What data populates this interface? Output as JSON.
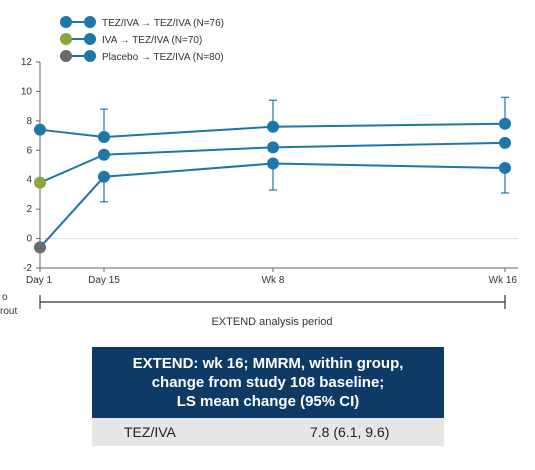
{
  "chart_data": {
    "type": "line",
    "categories": [
      "Day 1",
      "Day 15",
      "Wk 8",
      "Wk 16"
    ],
    "ylim": [
      -2,
      12
    ],
    "yticks": [
      -2,
      0,
      2,
      4,
      6,
      8,
      10,
      12
    ],
    "grid": false,
    "legend_position": "top-left",
    "series": [
      {
        "name": "TEZ/IVA → TEZ/IVA (N=76)",
        "color": "#1f77a8",
        "marker_left": "#1f77a8",
        "values": [
          7.4,
          6.9,
          7.6,
          7.8
        ],
        "error_high": [
          null,
          8.8,
          9.4,
          9.6
        ]
      },
      {
        "name": "IVA → TEZ/IVA (N=70)",
        "color": "#1f77a8",
        "marker_left": "#8aa63c",
        "values": [
          3.8,
          5.7,
          6.2,
          6.5
        ],
        "error_high": [
          null,
          null,
          null,
          null
        ]
      },
      {
        "name": "Placebo → TEZ/IVA (N=80)",
        "color": "#1f77a8",
        "marker_left": "#6b6b6b",
        "values": [
          -0.6,
          4.2,
          5.1,
          4.8
        ],
        "error_low": [
          null,
          2.5,
          3.3,
          3.1
        ]
      }
    ],
    "period_label": "EXTEND analysis period",
    "left_fragment": [
      "o",
      "rout"
    ]
  },
  "result_box": {
    "header_lines": [
      "EXTEND: wk 16; MMRM, within group,",
      "change from study 108 baseline;",
      "LS mean change (95% CI)"
    ],
    "row_label": "TEZ/IVA",
    "row_value": "7.8 (6.1, 9.6)"
  }
}
